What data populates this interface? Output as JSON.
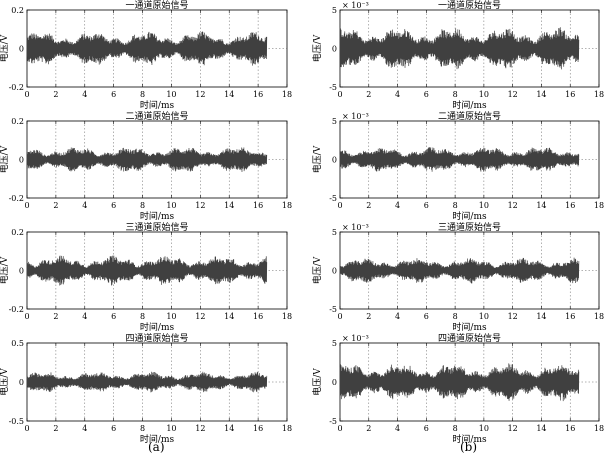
{
  "chart_data": [
    {
      "type": "line",
      "title": "一通道原始信号",
      "xlabel": "时间/ms",
      "ylabel": "电压/V",
      "exponent": "",
      "xlim": [
        0,
        18
      ],
      "ylim": [
        -0.2,
        0.2
      ],
      "xticks": [
        0,
        2,
        4,
        6,
        8,
        10,
        12,
        14,
        16,
        18
      ],
      "yticks": [
        "-0.2",
        "0",
        "0.2"
      ],
      "duration_ms": 16.6,
      "amplitude": 0.08,
      "grid": true,
      "color": "#404040"
    },
    {
      "type": "line",
      "title": "一通道原始信号",
      "xlabel": "时间/ms",
      "ylabel": "电压/V",
      "exponent": "× 10⁻³",
      "xlim": [
        0,
        18
      ],
      "ylim": [
        -5,
        5
      ],
      "xticks": [
        0,
        2,
        4,
        6,
        8,
        10,
        12,
        14,
        16,
        18
      ],
      "yticks": [
        "-5",
        "0",
        "5"
      ],
      "duration_ms": 16.6,
      "amplitude": 2.5,
      "grid": true,
      "color": "#404040"
    },
    {
      "type": "line",
      "title": "二通道原始信号",
      "xlabel": "时间/ms",
      "ylabel": "电压/V",
      "exponent": "",
      "xlim": [
        0,
        18
      ],
      "ylim": [
        -0.2,
        0.2
      ],
      "xticks": [
        0,
        2,
        4,
        6,
        8,
        10,
        12,
        14,
        16,
        18
      ],
      "yticks": [
        "-0.2",
        "0",
        "0.2"
      ],
      "duration_ms": 16.6,
      "amplitude": 0.06,
      "grid": true,
      "color": "#404040"
    },
    {
      "type": "line",
      "title": "二通道原始信号",
      "xlabel": "时间/ms",
      "ylabel": "电压/V",
      "exponent": "× 10⁻³",
      "xlim": [
        0,
        18
      ],
      "ylim": [
        -5,
        5
      ],
      "xticks": [
        0,
        2,
        4,
        6,
        8,
        10,
        12,
        14,
        16,
        18
      ],
      "yticks": [
        "-5",
        "0",
        "5"
      ],
      "duration_ms": 16.6,
      "amplitude": 1.5,
      "grid": true,
      "color": "#404040"
    },
    {
      "type": "line",
      "title": "三通道原始信号",
      "xlabel": "时间/ms",
      "ylabel": "电压/V",
      "exponent": "",
      "xlim": [
        0,
        18
      ],
      "ylim": [
        -0.2,
        0.2
      ],
      "xticks": [
        0,
        2,
        4,
        6,
        8,
        10,
        12,
        14,
        16,
        18
      ],
      "yticks": [
        "-0.2",
        "0",
        "0.2"
      ],
      "duration_ms": 16.6,
      "amplitude": 0.07,
      "grid": true,
      "color": "#404040"
    },
    {
      "type": "line",
      "title": "三通道原始信号",
      "xlabel": "时间/ms",
      "ylabel": "电压/V",
      "exponent": "× 10⁻³",
      "xlim": [
        0,
        18
      ],
      "ylim": [
        -5,
        5
      ],
      "xticks": [
        0,
        2,
        4,
        6,
        8,
        10,
        12,
        14,
        16,
        18
      ],
      "yticks": [
        "-5",
        "0",
        "5"
      ],
      "duration_ms": 16.6,
      "amplitude": 1.5,
      "grid": true,
      "color": "#404040"
    },
    {
      "type": "line",
      "title": "四通道原始信号",
      "xlabel": "时间/ms",
      "ylabel": "电压/V",
      "exponent": "",
      "xlim": [
        0,
        18
      ],
      "ylim": [
        -0.5,
        0.5
      ],
      "xticks": [
        0,
        2,
        4,
        6,
        8,
        10,
        12,
        14,
        16,
        18
      ],
      "yticks": [
        "-0.5",
        "0",
        "0.5"
      ],
      "duration_ms": 16.6,
      "amplitude": 0.12,
      "grid": true,
      "color": "#404040"
    },
    {
      "type": "line",
      "title": "四通道原始信号",
      "xlabel": "时间/ms",
      "ylabel": "电压/V",
      "exponent": "× 10⁻³",
      "xlim": [
        0,
        18
      ],
      "ylim": [
        -5,
        5
      ],
      "xticks": [
        0,
        2,
        4,
        6,
        8,
        10,
        12,
        14,
        16,
        18
      ],
      "yticks": [
        "-5",
        "0",
        "5"
      ],
      "duration_ms": 16.6,
      "amplitude": 2.2,
      "grid": true,
      "color": "#404040"
    }
  ],
  "captions": {
    "left": "(a)",
    "right": "(b)"
  }
}
